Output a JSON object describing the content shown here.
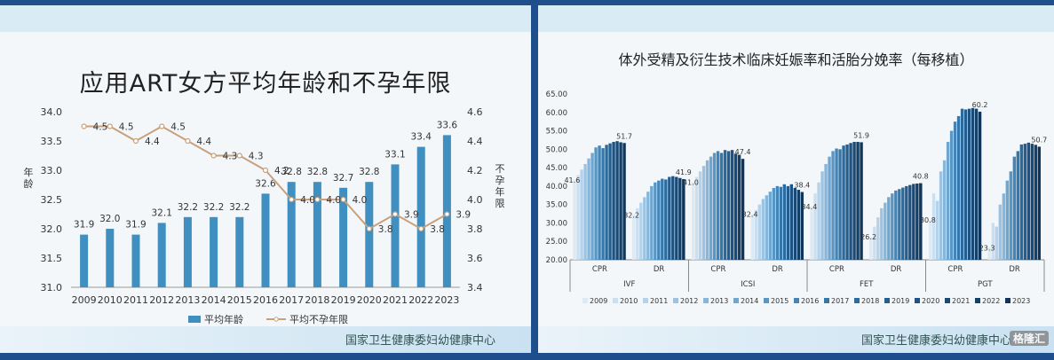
{
  "left": {
    "title": "应用ART女方平均年龄和不孕年限",
    "footer": "国家卫生健康委妇幼健康中心",
    "left_axis_label": "年龄",
    "right_axis_label": "不孕年限"
  },
  "right": {
    "title": "体外受精及衍生技术临床妊娠率和活胎分娩率（每移植）",
    "footer": "国家卫生健康委妇幼健康中心",
    "watermark": "格隆汇"
  },
  "chart_data": [
    {
      "type": "bar",
      "title": "应用ART女方平均年龄和不孕年限",
      "categories": [
        "2009",
        "2010",
        "2011",
        "2012",
        "2013",
        "2014",
        "2015",
        "2016",
        "2017",
        "2018",
        "2019",
        "2020",
        "2021",
        "2022",
        "2023"
      ],
      "series": [
        {
          "name": "平均年龄",
          "type": "bar",
          "axis": "left",
          "color": "#3f8fc0",
          "values": [
            31.9,
            32.0,
            31.9,
            32.1,
            32.2,
            32.2,
            32.2,
            32.6,
            32.8,
            32.8,
            32.7,
            32.8,
            33.1,
            33.4,
            33.6
          ]
        },
        {
          "name": "平均不孕年限",
          "type": "line",
          "axis": "right",
          "color": "#c9a07a",
          "values": [
            4.5,
            4.5,
            4.4,
            4.5,
            4.4,
            4.3,
            4.3,
            4.2,
            4.0,
            4.0,
            4.0,
            3.8,
            3.9,
            3.8,
            3.9
          ]
        }
      ],
      "ylabel": "年龄",
      "y2label": "不孕年限",
      "ylim": [
        31.0,
        34.0
      ],
      "yticks": [
        "31.0",
        "31.5",
        "32.0",
        "32.5",
        "33.0",
        "33.5",
        "34.0"
      ],
      "y2lim": [
        3.4,
        4.6
      ],
      "y2ticks": [
        "3.4",
        "3.6",
        "3.8",
        "4.0",
        "4.2",
        "4.4",
        "4.6"
      ],
      "legend": "bottom-center",
      "grid": false
    },
    {
      "type": "bar",
      "title": "体外受精及衍生技术临床妊娠率和活胎分娩率（每移植）",
      "years": [
        "2009",
        "2010",
        "2011",
        "2012",
        "2013",
        "2014",
        "2015",
        "2016",
        "2017",
        "2018",
        "2019",
        "2020",
        "2021",
        "2022",
        "2023"
      ],
      "colors": [
        "#dde9f3",
        "#cadff0",
        "#b4d2ea",
        "#9cc4e2",
        "#86b6da",
        "#6fa6cf",
        "#5896c4",
        "#4385b8",
        "#3577a9",
        "#2a6a9c",
        "#235e8e",
        "#1d5282",
        "#184a75",
        "#143f66",
        "#0f355a"
      ],
      "ylim": [
        20,
        65
      ],
      "yticks": [
        "20.00",
        "25.00",
        "30.00",
        "35.00",
        "40.00",
        "45.00",
        "50.00",
        "55.00",
        "60.00",
        "65.00"
      ],
      "groups": [
        {
          "name": "IVF",
          "sub": "CPR",
          "values": [
            41.6,
            43.0,
            44.5,
            46.0,
            47.5,
            49.0,
            50.5,
            51.0,
            50.3,
            51.2,
            51.6,
            52.0,
            52.2,
            51.9,
            51.7
          ],
          "first_label": "41.6",
          "last_label": "51.7"
        },
        {
          "name": "IVF",
          "sub": "DR",
          "values": [
            32.2,
            34.0,
            35.5,
            37.0,
            38.5,
            40.0,
            41.0,
            41.5,
            42.0,
            41.8,
            42.5,
            42.7,
            42.5,
            42.2,
            41.9
          ],
          "first_label": "32.2",
          "last_label": "41.9"
        },
        {
          "name": "ICSI",
          "sub": "CPR",
          "values": [
            41.0,
            42.5,
            44.0,
            45.5,
            47.0,
            48.0,
            49.0,
            49.5,
            49.0,
            49.8,
            49.5,
            49.8,
            48.8,
            48.5,
            47.4
          ],
          "first_label": "41.0",
          "last_label": "47.4"
        },
        {
          "name": "ICSI",
          "sub": "DR",
          "values": [
            32.4,
            33.5,
            35.0,
            36.5,
            37.5,
            38.5,
            39.5,
            40.0,
            39.8,
            40.5,
            40.0,
            40.5,
            39.5,
            39.0,
            38.4
          ],
          "first_label": "32.4",
          "last_label": "38.4"
        },
        {
          "name": "FET",
          "sub": "CPR",
          "values": [
            34.4,
            38.0,
            41.0,
            44.0,
            46.0,
            48.0,
            49.5,
            50.2,
            50.0,
            51.0,
            51.3,
            51.7,
            52.0,
            52.0,
            51.9
          ],
          "first_label": "34.4",
          "last_label": "51.9"
        },
        {
          "name": "FET",
          "sub": "DR",
          "values": [
            26.2,
            29.0,
            31.5,
            34.0,
            35.5,
            37.0,
            38.0,
            38.8,
            39.2,
            39.6,
            40.0,
            40.3,
            40.6,
            40.7,
            40.8
          ],
          "first_label": "26.2",
          "last_label": "40.8"
        },
        {
          "name": "PGT",
          "sub": "CPR",
          "values": [
            30.8,
            38.0,
            36.0,
            44.0,
            47.0,
            52.0,
            55.0,
            57.5,
            59.0,
            61.0,
            60.8,
            61.0,
            61.2,
            61.0,
            60.2
          ],
          "first_label": "30.8",
          "last_label": "60.2"
        },
        {
          "name": "PGT",
          "sub": "DR",
          "values": [
            23.3,
            30.0,
            29.0,
            35.0,
            38.0,
            41.5,
            44.0,
            48.0,
            49.5,
            51.3,
            51.5,
            51.8,
            51.5,
            51.2,
            50.7
          ],
          "first_label": "23.3",
          "last_label": "50.7"
        }
      ],
      "legend": "bottom",
      "grid": false
    }
  ]
}
